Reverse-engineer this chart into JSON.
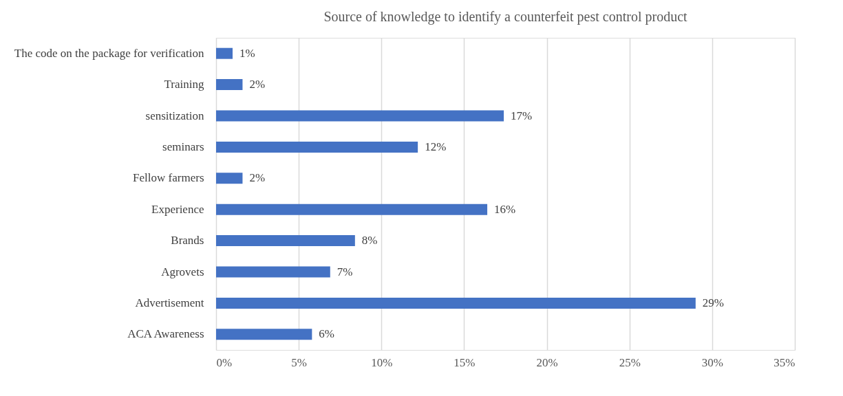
{
  "chart_data": {
    "type": "bar",
    "orientation": "horizontal",
    "title": "Source of knowledge to identify a counterfeit pest control product",
    "categories": [
      "The code on the package for verification",
      "Training",
      "sensitization",
      "seminars",
      "Fellow farmers",
      "Experience",
      "Brands",
      "Agrovets",
      "Advertisement",
      "ACA Awareness"
    ],
    "values": [
      1.0,
      1.6,
      17.4,
      12.2,
      1.6,
      16.4,
      8.4,
      6.9,
      29.0,
      5.8
    ],
    "value_labels": [
      "1%",
      "2%",
      "17%",
      "12%",
      "2%",
      "16%",
      "8%",
      "7%",
      "29%",
      "6%"
    ],
    "color": "#4472c4",
    "xlim": [
      0,
      35
    ],
    "xticks": [
      {
        "value": 0,
        "label": "0%"
      },
      {
        "value": 5,
        "label": "5%"
      },
      {
        "value": 10,
        "label": "10%"
      },
      {
        "value": 15,
        "label": "15%"
      },
      {
        "value": 20,
        "label": "20%"
      },
      {
        "value": 25,
        "label": "25%"
      },
      {
        "value": 30,
        "label": "30%"
      },
      {
        "value": 35,
        "label": "35%"
      }
    ],
    "grid": "x"
  }
}
